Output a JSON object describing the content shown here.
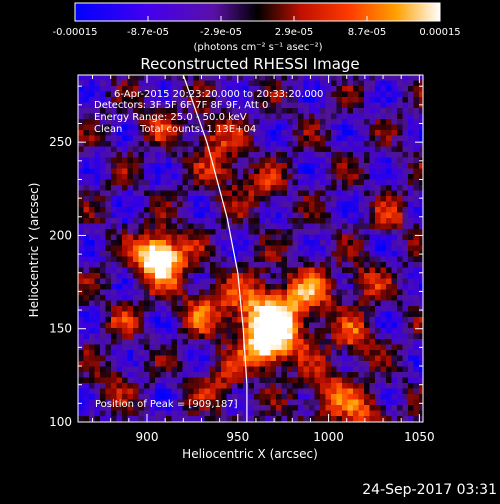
{
  "colorbar": {
    "tick_labels": [
      "-0.00015",
      "-8.7e-05",
      "-2.9e-05",
      "2.9e-05",
      "8.7e-05",
      "0.00015"
    ],
    "units_label": "(photons cm⁻² s⁻¹ asec⁻²)",
    "colors": [
      "#0000ff",
      "#6a00d8",
      "#000000",
      "#ff2a00",
      "#ff9a00",
      "#ffffff"
    ]
  },
  "chart_data": {
    "type": "heatmap",
    "title": "Reconstructed RHESSI Image",
    "xlabel": "Heliocentric X (arcsec)",
    "ylabel": "Heliocentric Y (arcsec)",
    "xlim": [
      862,
      1052
    ],
    "ylim": [
      100,
      286
    ],
    "x_ticks": [
      900,
      950,
      1000,
      1050
    ],
    "y_ticks": [
      100,
      150,
      200,
      250
    ],
    "annotations": [
      "6-Apr-2015 20:23:20.000 to 20:33:20.000",
      "Detectors: 3F 5F 6F 7F 8F 9F, Att 0",
      "Energy Range: 25.0 - 50.0 keV",
      "Clean",
      "Total counts: 1.13E+04"
    ],
    "peak_label": "Position of Peak = [909,187]",
    "peak": [
      909,
      187
    ],
    "limb_curve": [
      [
        920,
        286
      ],
      [
        933,
        250
      ],
      [
        944,
        210
      ],
      [
        950,
        180
      ],
      [
        953,
        150
      ],
      [
        955,
        120
      ],
      [
        955,
        100
      ]
    ]
  },
  "footer": {
    "timestamp": "24-Sep-2017 03:31"
  }
}
